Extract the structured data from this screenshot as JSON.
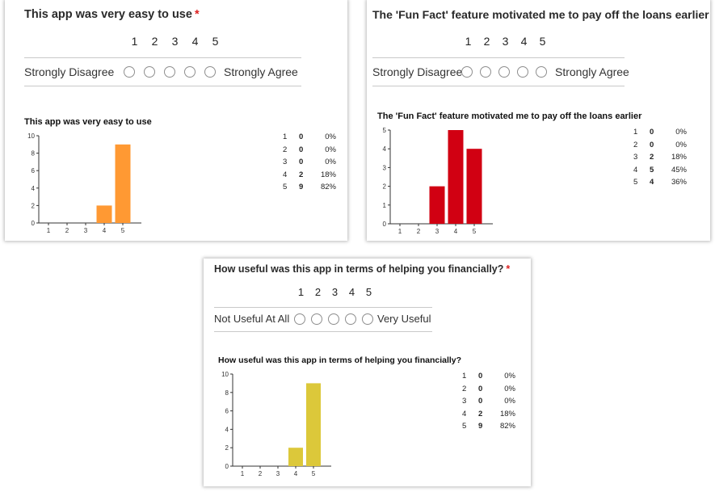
{
  "colors": {
    "orange": "#ff9933",
    "red": "#d10012",
    "yellow": "#dcc83a",
    "star": "#dd2222"
  },
  "scale": [
    "1",
    "2",
    "3",
    "4",
    "5"
  ],
  "questions": [
    {
      "title": "This app was very easy to use",
      "required_mark": "*",
      "low_label": "Strongly Disagree",
      "high_label": "Strongly Agree",
      "chart_title": "This app was very easy to use",
      "rows": [
        {
          "option": "1",
          "count": "0",
          "pct": "0%"
        },
        {
          "option": "2",
          "count": "0",
          "pct": "0%"
        },
        {
          "option": "3",
          "count": "0",
          "pct": "0%"
        },
        {
          "option": "4",
          "count": "2",
          "pct": "18%"
        },
        {
          "option": "5",
          "count": "9",
          "pct": "82%"
        }
      ]
    },
    {
      "title": "The 'Fun Fact' feature motivated me to pay off the loans earlier",
      "required_mark": "*",
      "low_label": "Strongly Disagree",
      "high_label": "Strongly Agree",
      "chart_title": "The 'Fun Fact' feature motivated me to pay off the loans earlier",
      "rows": [
        {
          "option": "1",
          "count": "0",
          "pct": "0%"
        },
        {
          "option": "2",
          "count": "0",
          "pct": "0%"
        },
        {
          "option": "3",
          "count": "2",
          "pct": "18%"
        },
        {
          "option": "4",
          "count": "5",
          "pct": "45%"
        },
        {
          "option": "5",
          "count": "4",
          "pct": "36%"
        }
      ]
    },
    {
      "title": "How useful was this app in terms of helping you financially?",
      "required_mark": "*",
      "low_label": "Not Useful At All",
      "high_label": "Very Useful",
      "chart_title": "How useful was this app in terms of helping you financially?",
      "rows": [
        {
          "option": "1",
          "count": "0",
          "pct": "0%"
        },
        {
          "option": "2",
          "count": "0",
          "pct": "0%"
        },
        {
          "option": "3",
          "count": "0",
          "pct": "0%"
        },
        {
          "option": "4",
          "count": "2",
          "pct": "18%"
        },
        {
          "option": "5",
          "count": "9",
          "pct": "82%"
        }
      ]
    }
  ],
  "chart_data": [
    {
      "type": "bar",
      "title": "This app was very easy to use",
      "categories": [
        "1",
        "2",
        "3",
        "4",
        "5"
      ],
      "values": [
        0,
        0,
        0,
        2,
        9
      ],
      "ylim": [
        0,
        10
      ],
      "yticks": [
        "0",
        "2",
        "4",
        "6",
        "8",
        "10"
      ],
      "color": "#ff9933",
      "grid": false,
      "legend": "none"
    },
    {
      "type": "bar",
      "title": "The 'Fun Fact' feature motivated me to pay off the loans earlier",
      "categories": [
        "1",
        "2",
        "3",
        "4",
        "5"
      ],
      "values": [
        0,
        0,
        2,
        5,
        4
      ],
      "ylim": [
        0,
        5
      ],
      "yticks": [
        "0",
        "1",
        "2",
        "3",
        "4",
        "5"
      ],
      "color": "#d10012",
      "grid": false,
      "legend": "none"
    },
    {
      "type": "bar",
      "title": "How useful was this app in terms of helping you financially?",
      "categories": [
        "1",
        "2",
        "3",
        "4",
        "5"
      ],
      "values": [
        0,
        0,
        0,
        2,
        9
      ],
      "ylim": [
        0,
        10
      ],
      "yticks": [
        "0",
        "2",
        "4",
        "6",
        "8",
        "10"
      ],
      "color": "#dcc83a",
      "grid": false,
      "legend": "none"
    }
  ]
}
